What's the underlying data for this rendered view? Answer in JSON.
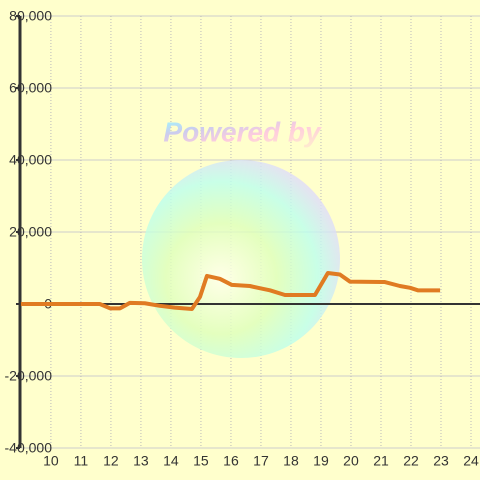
{
  "chart_data": {
    "type": "line",
    "watermark": "Powered by",
    "x": [
      9,
      11.63,
      11.97,
      12.3,
      12.63,
      13.13,
      13.63,
      14.13,
      14.7,
      14.97,
      15.2,
      15.63,
      16.03,
      16.63,
      16.9,
      17.3,
      17.8,
      18.8,
      19.23,
      19.63,
      19.97,
      21.13,
      21.63,
      21.97,
      22.23,
      22.97
    ],
    "values": [
      0,
      0,
      -1200,
      -1200,
      300,
      200,
      -500,
      -1000,
      -1400,
      2000,
      7800,
      7000,
      5300,
      5000,
      4500,
      3800,
      2500,
      2500,
      8600,
      8200,
      6200,
      6100,
      5000,
      4500,
      3800,
      3800
    ],
    "color": "#e07b22",
    "xlim": [
      8.97,
      24.3
    ],
    "ylim": [
      -40000,
      80000
    ],
    "xticks": [
      10,
      11,
      12,
      13,
      14,
      15,
      16,
      17,
      18,
      19,
      20,
      21,
      22,
      23,
      24
    ],
    "yticks": [
      {
        "value": -40000,
        "label": "-40,000"
      },
      {
        "value": -20000,
        "label": "-20,000"
      },
      0,
      {
        "value": 20000,
        "label": "20,000"
      },
      {
        "value": 40000,
        "label": "40,000"
      },
      {
        "value": 60000,
        "label": "60,000"
      },
      {
        "value": 80000,
        "label": "80,000"
      }
    ],
    "grid": true
  }
}
